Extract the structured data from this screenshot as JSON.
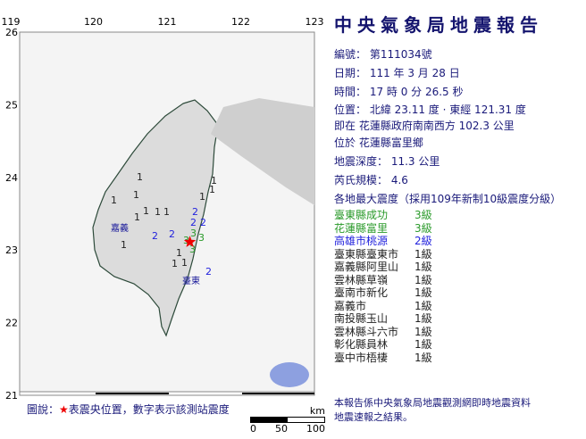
{
  "header": {
    "title": "中央氣象局地震報告"
  },
  "report": {
    "number": "編號： 第111034號",
    "date": "日期： 111 年 3 月 28 日",
    "time": "時間： 17 時 0 分 26.5 秒",
    "position": "位置： 北緯 23.11 度 · 東經 121.31 度",
    "relative": "即在 花蓮縣政府南南西方 102.3 公里",
    "located": "位於 花蓮縣富里鄉",
    "depth": "地震深度： 11.3 公里",
    "magnitude": "芮氏規模： 4.6",
    "intensity_heading": "各地最大震度（採用109年新制10級震度分級）"
  },
  "stations": [
    {
      "name": "臺東縣成功",
      "level": "3級",
      "color": "#2a9a2a"
    },
    {
      "name": "花蓮縣富里",
      "level": "3級",
      "color": "#2a9a2a"
    },
    {
      "name": "高雄市桃源",
      "level": "2級",
      "color": "#2222dd"
    },
    {
      "name": "臺東縣臺東市",
      "level": "1級",
      "color": "#222222"
    },
    {
      "name": "嘉義縣阿里山",
      "level": "1級",
      "color": "#222222"
    },
    {
      "name": "雲林縣草嶺",
      "level": "1級",
      "color": "#222222"
    },
    {
      "name": "臺南市新化",
      "level": "1級",
      "color": "#222222"
    },
    {
      "name": "嘉義市",
      "level": "1級",
      "color": "#222222"
    },
    {
      "name": "南投縣玉山",
      "level": "1級",
      "color": "#222222"
    },
    {
      "name": "雲林縣斗六市",
      "level": "1級",
      "color": "#222222"
    },
    {
      "name": "彰化縣員林",
      "level": "1級",
      "color": "#222222"
    },
    {
      "name": "臺中市梧棲",
      "level": "1級",
      "color": "#222222"
    }
  ],
  "note": [
    "本報告係中央氣象局地震觀測網即時地震資料",
    "地震速報之結果。"
  ],
  "map": {
    "lon_ticks": [
      "119",
      "120",
      "121",
      "122",
      "123"
    ],
    "lat_ticks": [
      "26",
      "25",
      "24",
      "23",
      "22",
      "21"
    ],
    "city_labels": [
      "嘉義",
      "臺東"
    ],
    "station_marks": [
      "1",
      "1",
      "1",
      "1",
      "1",
      "1",
      "1",
      "1",
      "1",
      "1",
      "1",
      "2",
      "2",
      "2",
      "2",
      "2",
      "3",
      "3",
      "3",
      "3",
      "1",
      "1",
      "1",
      "2"
    ],
    "epicenter": {
      "lat": 23.11,
      "lon": 121.31
    }
  },
  "legend": {
    "prefix": "圖說：",
    "star": "★",
    "text": "表震央位置，數字表示該測站震度"
  },
  "scale": {
    "unit": "km",
    "labels": [
      "0",
      "50",
      "100"
    ]
  }
}
